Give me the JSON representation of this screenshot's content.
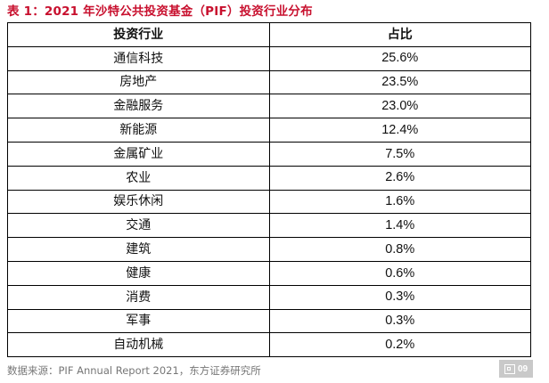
{
  "title": "表 1：2021 年沙特公共投资基金（PIF）投资行业分布",
  "chart_data": {
    "type": "table",
    "title": "表 1：2021 年沙特公共投资基金（PIF）投资行业分布",
    "columns": [
      "投资行业",
      "占比"
    ],
    "rows": [
      [
        "通信科技",
        "25.6%"
      ],
      [
        "房地产",
        "23.5%"
      ],
      [
        "金融服务",
        "23.0%"
      ],
      [
        "新能源",
        "12.4%"
      ],
      [
        "金属矿业",
        "7.5%"
      ],
      [
        "农业",
        "2.6%"
      ],
      [
        "娱乐休闲",
        "1.6%"
      ],
      [
        "交通",
        "1.4%"
      ],
      [
        "建筑",
        "0.8%"
      ],
      [
        "健康",
        "0.6%"
      ],
      [
        "消费",
        "0.3%"
      ],
      [
        "军事",
        "0.3%"
      ],
      [
        "自动机械",
        "0.2%"
      ]
    ],
    "source": "数据来源：PIF Annual Report 2021，东方证券研究所"
  },
  "badge": {
    "number": "09",
    "icon": "image-icon"
  }
}
